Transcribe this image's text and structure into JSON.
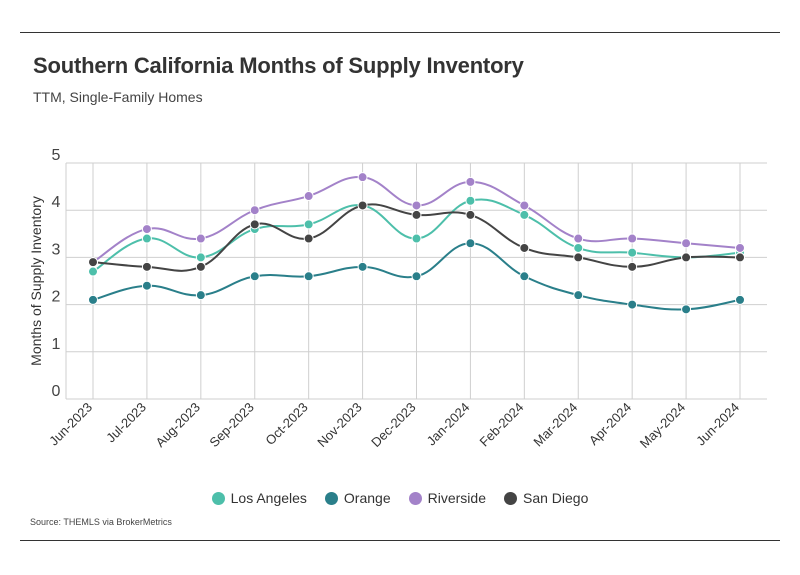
{
  "header": {
    "title": "Southern California Months of Supply Inventory",
    "subtitle": "TTM, Single-Family Homes"
  },
  "footer": {
    "source": "Source:  THEMLS via BrokerMetrics"
  },
  "chart_data": {
    "type": "line",
    "title": "Southern California Months of Supply Inventory",
    "subtitle": "TTM, Single-Family Homes",
    "xlabel": "",
    "ylabel": "Months of Supply Inventory",
    "ylim": [
      0,
      5
    ],
    "yticks": [
      "0",
      "1",
      "2",
      "3",
      "4",
      "5"
    ],
    "grid": true,
    "legend_position": "bottom",
    "categories": [
      "Jun-2023",
      "Jul-2023",
      "Aug-2023",
      "Sep-2023",
      "Oct-2023",
      "Nov-2023",
      "Dec-2023",
      "Jan-2024",
      "Feb-2024",
      "Mar-2024",
      "Apr-2024",
      "May-2024",
      "Jun-2024"
    ],
    "series": [
      {
        "name": "Los Angeles",
        "color": "#4dbfaa",
        "values": [
          2.7,
          3.4,
          3.0,
          3.6,
          3.7,
          4.1,
          3.4,
          4.2,
          3.9,
          3.2,
          3.1,
          3.0,
          3.1
        ]
      },
      {
        "name": "Orange",
        "color": "#2a7f8a",
        "values": [
          2.1,
          2.4,
          2.2,
          2.6,
          2.6,
          2.8,
          2.6,
          3.3,
          2.6,
          2.2,
          2.0,
          1.9,
          2.1
        ]
      },
      {
        "name": "Riverside",
        "color": "#a382c9",
        "values": [
          2.9,
          3.6,
          3.4,
          4.0,
          4.3,
          4.7,
          4.1,
          4.6,
          4.1,
          3.4,
          3.4,
          3.3,
          3.2
        ]
      },
      {
        "name": "San Diego",
        "color": "#444444",
        "values": [
          2.9,
          2.8,
          2.8,
          3.7,
          3.4,
          4.1,
          3.9,
          3.9,
          3.2,
          3.0,
          2.8,
          3.0,
          3.0
        ]
      }
    ]
  }
}
